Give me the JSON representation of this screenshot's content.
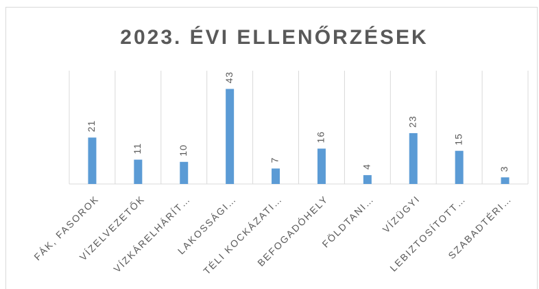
{
  "chart_data": {
    "type": "bar",
    "title": "2023. ÉVI ELLENŐRZÉSEK",
    "categories": [
      "FÁK, FASOROK",
      "VÍZELVEZETŐK",
      "VÍZKÁRELHÁRÍT…",
      "LAKOSSÁGI…",
      "TÉLI KOCKÁZATI…",
      "BEFOGADÓHELY",
      "FÖLDTANI…",
      "VÍZÜGYI",
      "LEBIZTOSÍTOTT…",
      "SZABADTÉRI…"
    ],
    "values": [
      21,
      11,
      10,
      43,
      7,
      16,
      4,
      23,
      15,
      3
    ],
    "color": "#5b9bd5",
    "ylim": [
      0,
      50
    ],
    "grid": true
  }
}
